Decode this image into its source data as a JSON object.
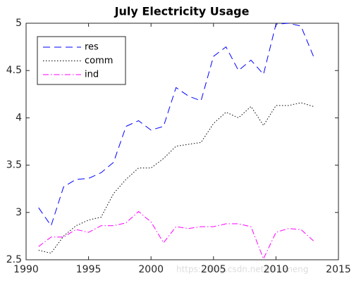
{
  "chart_data": {
    "type": "line",
    "title": "July Electricity Usage",
    "x": [
      1991,
      1992,
      1993,
      1994,
      1995,
      1996,
      1997,
      1998,
      1999,
      2000,
      2001,
      2002,
      2003,
      2004,
      2005,
      2006,
      2007,
      2008,
      2009,
      2010,
      2011,
      2012,
      2013
    ],
    "series": [
      {
        "name": "res",
        "color": "#0000ff",
        "dash": "dashed",
        "values": [
          3.05,
          2.86,
          3.27,
          3.35,
          3.36,
          3.42,
          3.53,
          3.91,
          3.97,
          3.87,
          3.91,
          4.32,
          4.23,
          4.18,
          4.65,
          4.75,
          4.5,
          4.61,
          4.46,
          4.99,
          5.0,
          4.97,
          4.65
        ]
      },
      {
        "name": "comm",
        "color": "#000000",
        "dash": "dotted",
        "values": [
          2.6,
          2.57,
          2.75,
          2.86,
          2.92,
          2.95,
          3.2,
          3.35,
          3.47,
          3.47,
          3.57,
          3.7,
          3.72,
          3.74,
          3.94,
          4.06,
          4.0,
          4.12,
          3.92,
          4.13,
          4.13,
          4.16,
          4.12
        ]
      },
      {
        "name": "ind",
        "color": "#ff00ff",
        "dash": "dashdot",
        "values": [
          2.64,
          2.74,
          2.74,
          2.82,
          2.79,
          2.86,
          2.86,
          2.89,
          3.01,
          2.9,
          2.68,
          2.85,
          2.83,
          2.85,
          2.85,
          2.88,
          2.88,
          2.85,
          2.51,
          2.79,
          2.83,
          2.82,
          2.7
        ]
      }
    ],
    "xlim": [
      1990,
      2015
    ],
    "xticks": [
      1990,
      1995,
      2000,
      2005,
      2010,
      2015
    ],
    "ylim": [
      2.5,
      5
    ],
    "yticks": [
      2.5,
      3,
      3.5,
      4,
      4.5,
      5
    ],
    "grid": false,
    "legend": "northwest",
    "watermark": "https://blog.csdn.net/zhuimeng"
  }
}
